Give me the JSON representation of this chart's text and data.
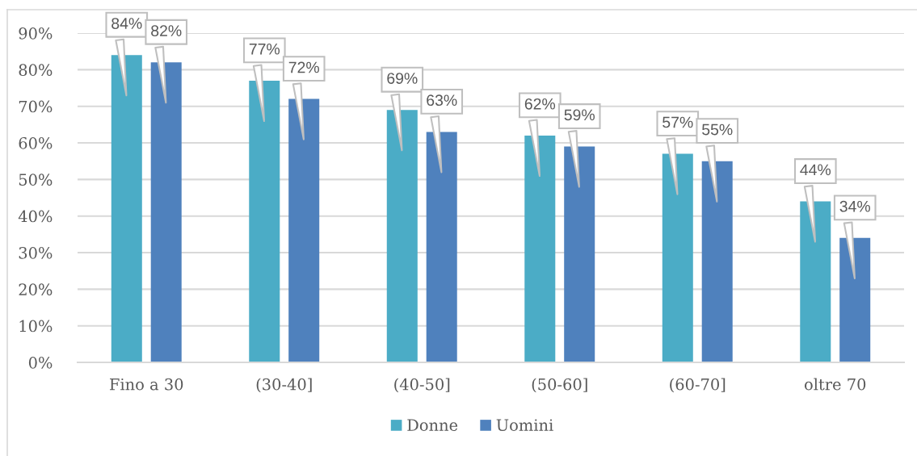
{
  "chart_data": {
    "type": "bar",
    "categories": [
      "Fino a 30",
      "(30-40]",
      "(40-50]",
      "(50-60]",
      "(60-70]",
      "oltre 70"
    ],
    "series": [
      {
        "name": "Donne",
        "color": "#4bacc6",
        "values": [
          84,
          77,
          69,
          62,
          57,
          44
        ],
        "value_labels": [
          "84%",
          "77%",
          "69%",
          "62%",
          "57%",
          "44%"
        ]
      },
      {
        "name": "Uomini",
        "color": "#4f81bd",
        "values": [
          82,
          72,
          63,
          59,
          55,
          34
        ],
        "value_labels": [
          "82%",
          "72%",
          "63%",
          "59%",
          "55%",
          "34%"
        ]
      }
    ],
    "ylim": [
      0,
      90
    ],
    "yticks": [
      {
        "value": 0,
        "label": "0%"
      },
      {
        "value": 10,
        "label": "10%"
      },
      {
        "value": 20,
        "label": "20%"
      },
      {
        "value": 30,
        "label": "30%"
      },
      {
        "value": 40,
        "label": "40%"
      },
      {
        "value": 50,
        "label": "50%"
      },
      {
        "value": 60,
        "label": "60%"
      },
      {
        "value": 70,
        "label": "70%"
      },
      {
        "value": 80,
        "label": "80%"
      },
      {
        "value": 90,
        "label": "90%"
      }
    ],
    "grid": "y",
    "legend": "bottom"
  }
}
